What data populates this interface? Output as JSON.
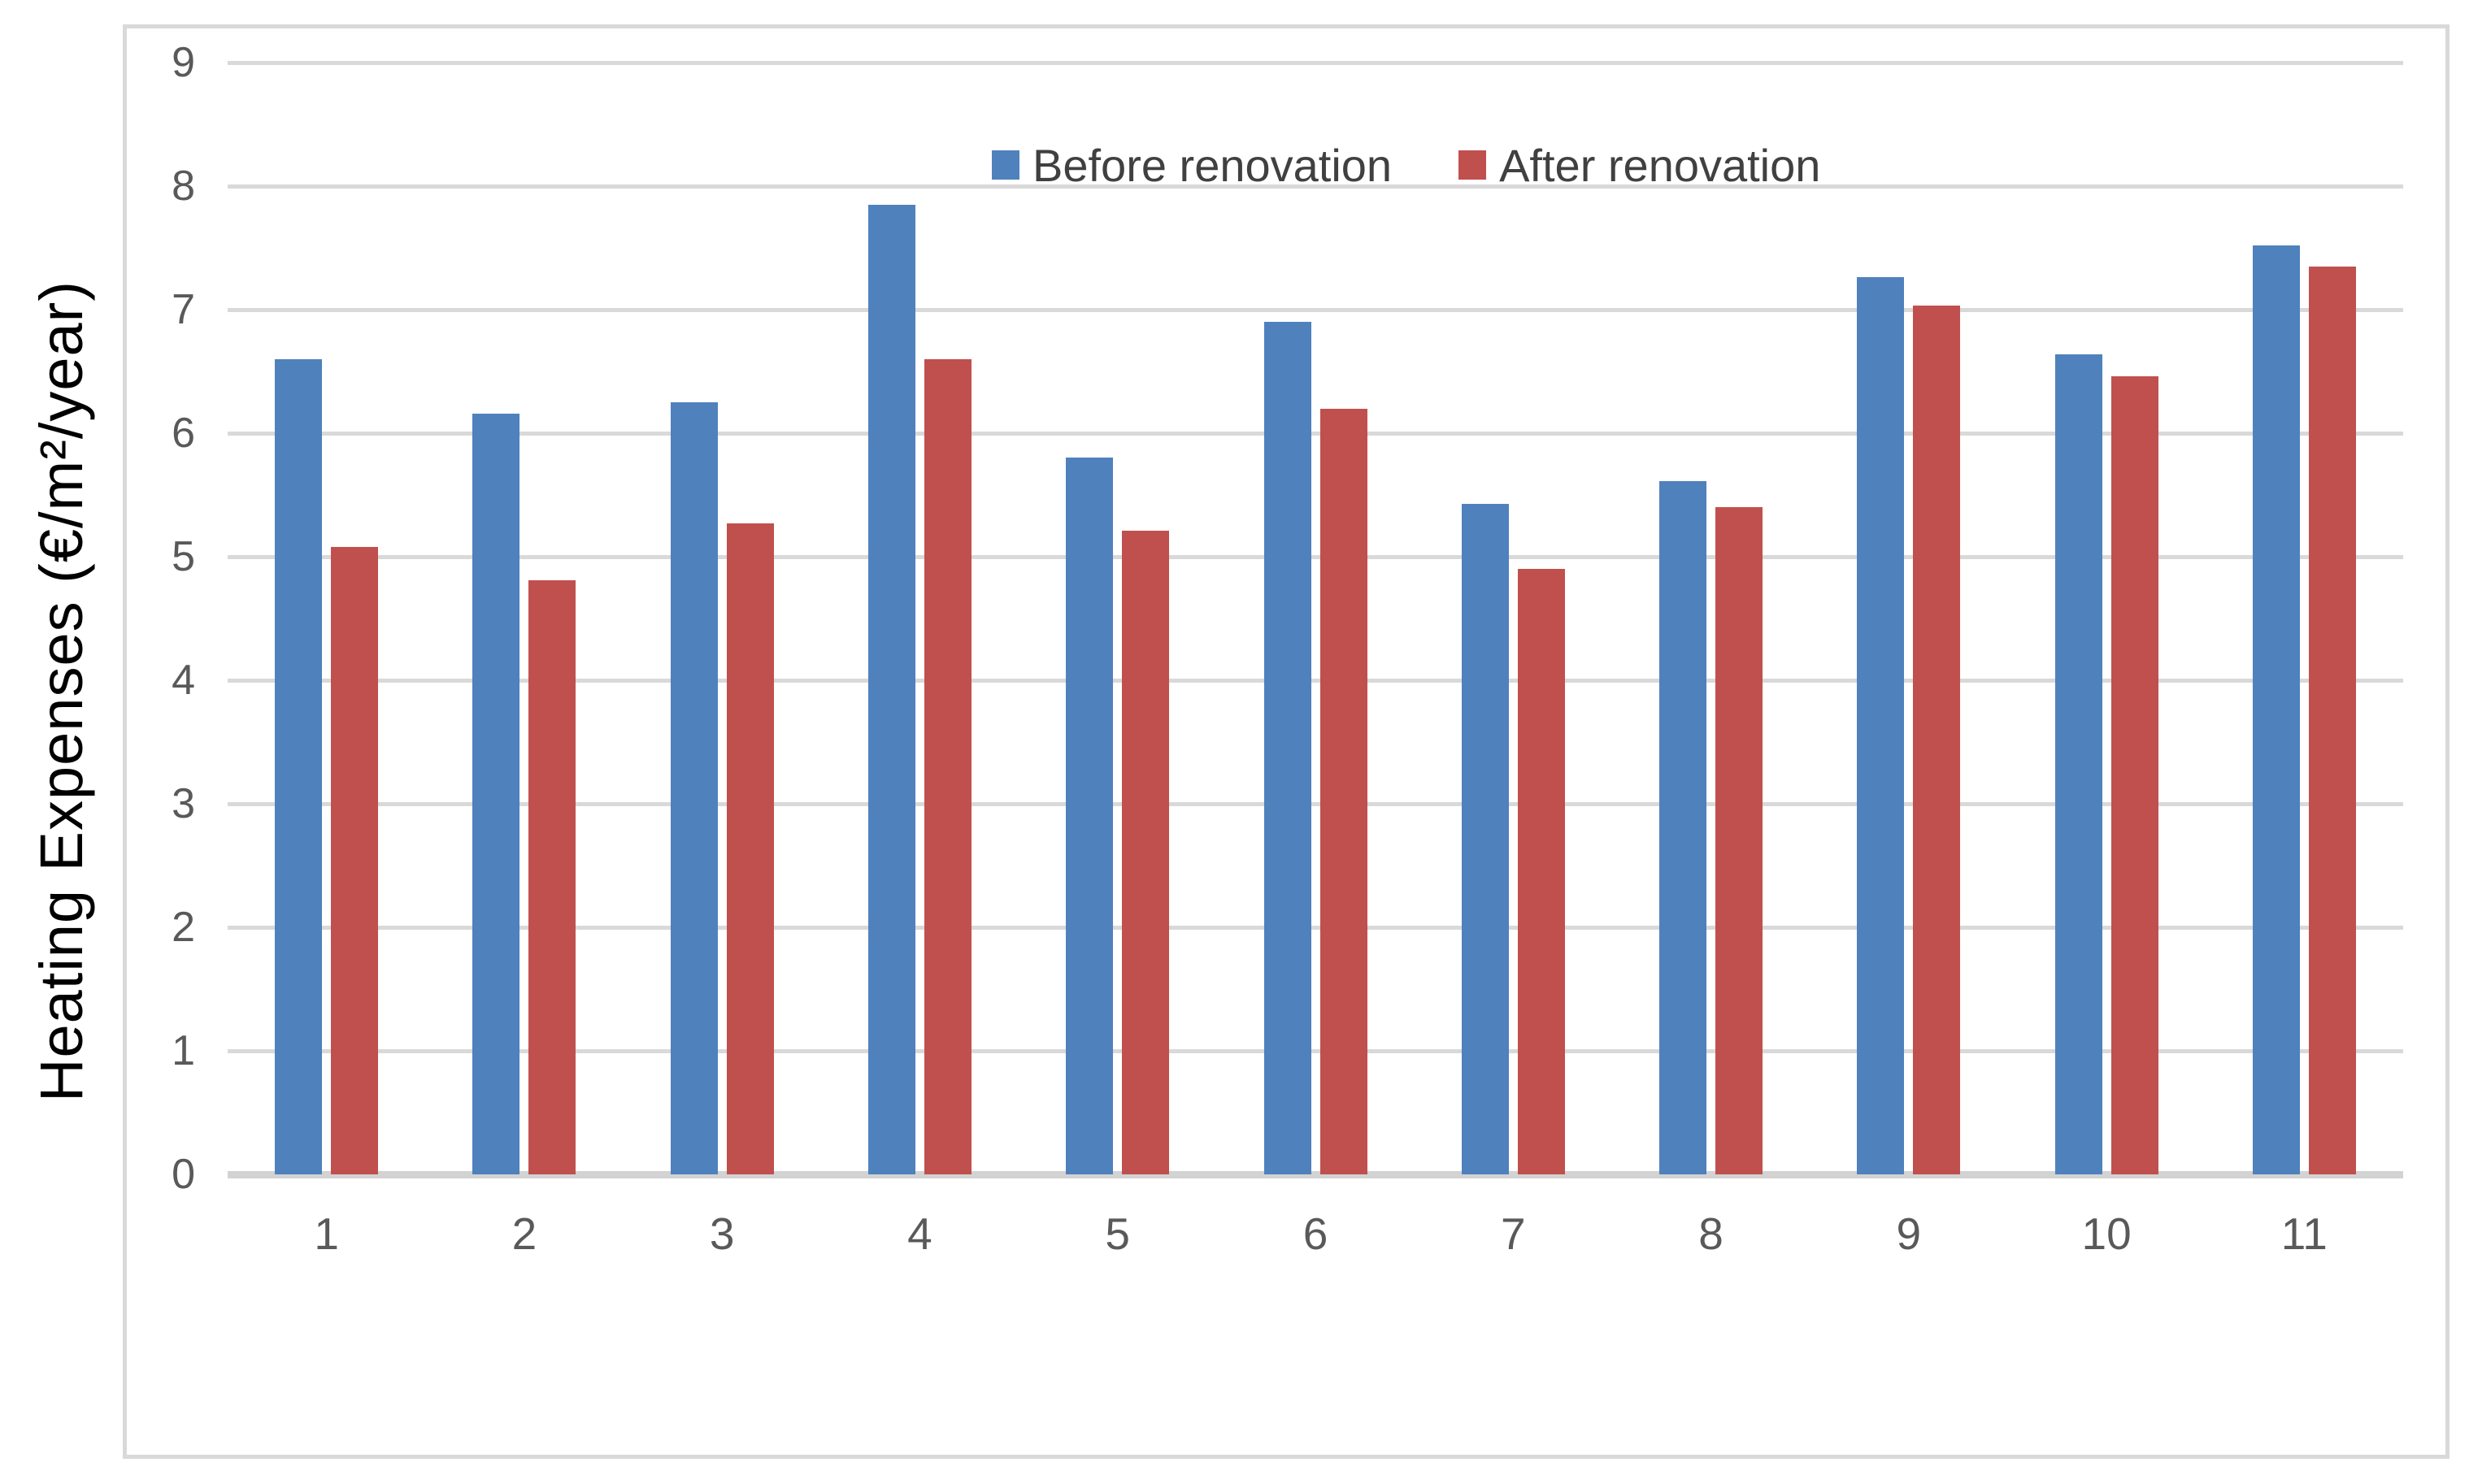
{
  "chart_data": {
    "type": "bar",
    "title": "",
    "xlabel": "",
    "ylabel": "Heating Expenses (€/m²/year)",
    "categories": [
      "1",
      "2",
      "3",
      "4",
      "5",
      "6",
      "7",
      "8",
      "9",
      "10",
      "11"
    ],
    "series": [
      {
        "name": "Before renovation",
        "color": "#4F81BD",
        "values": [
          6.6,
          6.16,
          6.25,
          7.85,
          5.8,
          6.9,
          5.43,
          5.61,
          7.26,
          6.64,
          7.52
        ]
      },
      {
        "name": "After renovation",
        "color": "#C0504D",
        "values": [
          5.08,
          4.81,
          5.27,
          6.6,
          5.21,
          6.2,
          4.9,
          5.4,
          7.03,
          6.46,
          7.35
        ]
      }
    ],
    "ylim": [
      0,
      9
    ],
    "yticks": [
      0,
      1,
      2,
      3,
      4,
      5,
      6,
      7,
      8,
      9
    ],
    "grid": true,
    "legend_position": "top-center",
    "colors": {
      "gridline": "#D9D9D9",
      "axis_line": "#D3D3D3",
      "chart_border": "#D9D9D9",
      "tick_text": "#595959",
      "legend_text": "#404040",
      "axis_title_text": "#000000",
      "background": "#FFFFFF"
    }
  }
}
